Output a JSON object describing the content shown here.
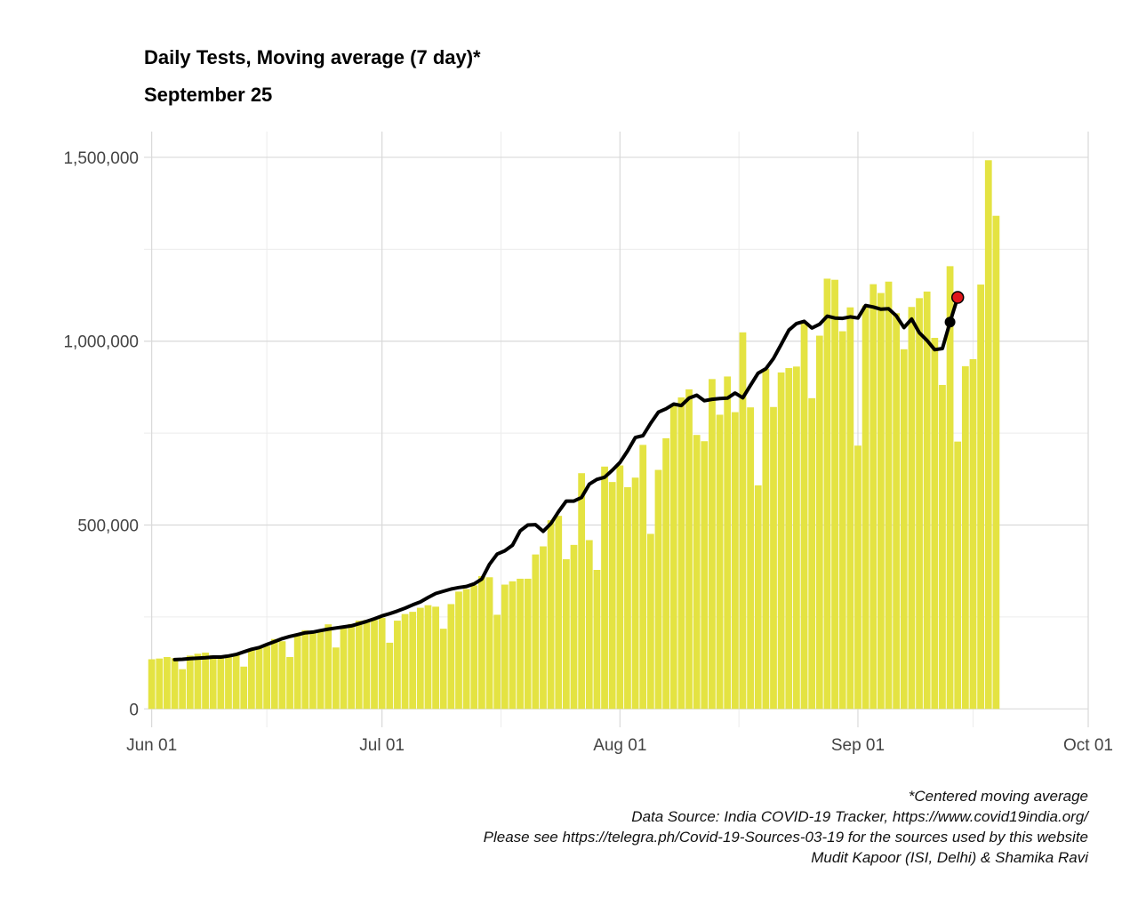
{
  "chart_data": {
    "type": "bar",
    "title": "Daily Tests, Moving average (7 day)*",
    "subtitle": "September 25",
    "xlabel": "",
    "ylabel": "",
    "x_start": "2020-06-01",
    "xlim": [
      "2020-05-31",
      "2020-10-01"
    ],
    "ylim": [
      -50000,
      1570000
    ],
    "x_ticks": [
      "Jun 01",
      "Jul 01",
      "Aug 01",
      "Sep 01",
      "Oct 01"
    ],
    "y_ticks": [
      "0",
      "500,000",
      "1,000,000",
      "1,500,000"
    ],
    "grid": true,
    "series": [
      {
        "kind": "bar",
        "values": [
          135000,
          137000,
          141000,
          138000,
          108000,
          145000,
          150000,
          153000,
          146000,
          145000,
          141000,
          150000,
          115000,
          160000,
          169000,
          171000,
          190000,
          184000,
          141000,
          204000,
          214000,
          206000,
          215000,
          230000,
          167000,
          219000,
          231000,
          240000,
          242000,
          242000,
          248000,
          180000,
          240000,
          258000,
          264000,
          275000,
          282000,
          278000,
          218000,
          285000,
          319000,
          326000,
          336000,
          361000,
          358000,
          256000,
          338000,
          347000,
          354000,
          354000,
          420000,
          442000,
          513000,
          525000,
          407000,
          446000,
          641000,
          459000,
          378000,
          659000,
          617000,
          662000,
          603000,
          629000,
          718000,
          476000,
          650000,
          736000,
          829000,
          847000,
          869000,
          745000,
          728000,
          897000,
          800000,
          904000,
          807000,
          1024000,
          820000,
          608000,
          925000,
          821000,
          915000,
          927000,
          931000,
          1052000,
          845000,
          1015000,
          1170000,
          1167000,
          1027000,
          1092000,
          716000,
          1097000,
          1155000,
          1131000,
          1162000,
          1076000,
          978000,
          1093000,
          1117000,
          1135000,
          1009000,
          881000,
          1204000,
          727000,
          932000,
          951000,
          1154000,
          1492000,
          1341000
        ]
      },
      {
        "kind": "line",
        "name": "moving_average",
        "start_index": 3,
        "values": [
          134000,
          135000,
          137000,
          138000,
          139000,
          141000,
          141000,
          144000,
          148000,
          155000,
          162000,
          167000,
          175000,
          183000,
          191000,
          197000,
          202000,
          207000,
          209000,
          213000,
          217000,
          220000,
          223000,
          226000,
          232000,
          238000,
          245000,
          253000,
          259000,
          266000,
          274000,
          283000,
          291000,
          303000,
          314000,
          320000,
          326000,
          330000,
          333000,
          340000,
          353000,
          393000,
          421000,
          430000,
          445000,
          484000,
          500000,
          501000,
          483000,
          504000,
          536000,
          565000,
          565000,
          575000,
          611000,
          624000,
          630000,
          649000,
          670000,
          702000,
          738000,
          743000,
          777000,
          807000,
          816000,
          829000,
          825000,
          845000,
          853000,
          838000,
          842000,
          844000,
          845000,
          859000,
          846000,
          880000,
          913000,
          925000,
          953000,
          991000,
          1030000,
          1048000,
          1054000,
          1036000,
          1046000,
          1068000,
          1063000,
          1062000,
          1066000,
          1063000,
          1097000,
          1093000,
          1087000,
          1088000,
          1069000,
          1037000,
          1060000,
          1023000,
          1002000,
          977000,
          980000,
          1052000,
          1119000
        ]
      }
    ],
    "highlight_bar": {
      "index": 116,
      "color": "#cc5a12"
    },
    "bar_color": "#e4e342",
    "line_color": "#000000",
    "point_penultimate_color": "#000000",
    "point_last_color": "#e0161b"
  },
  "caption": [
    "*Centered moving average",
    "Data Source: India COVID-19 Tracker, https://www.covid19india.org/",
    "Please see https://telegra.ph/Covid-19-Sources-03-19 for the sources used by this website",
    "Mudit Kapoor (ISI, Delhi) & Shamika Ravi"
  ]
}
